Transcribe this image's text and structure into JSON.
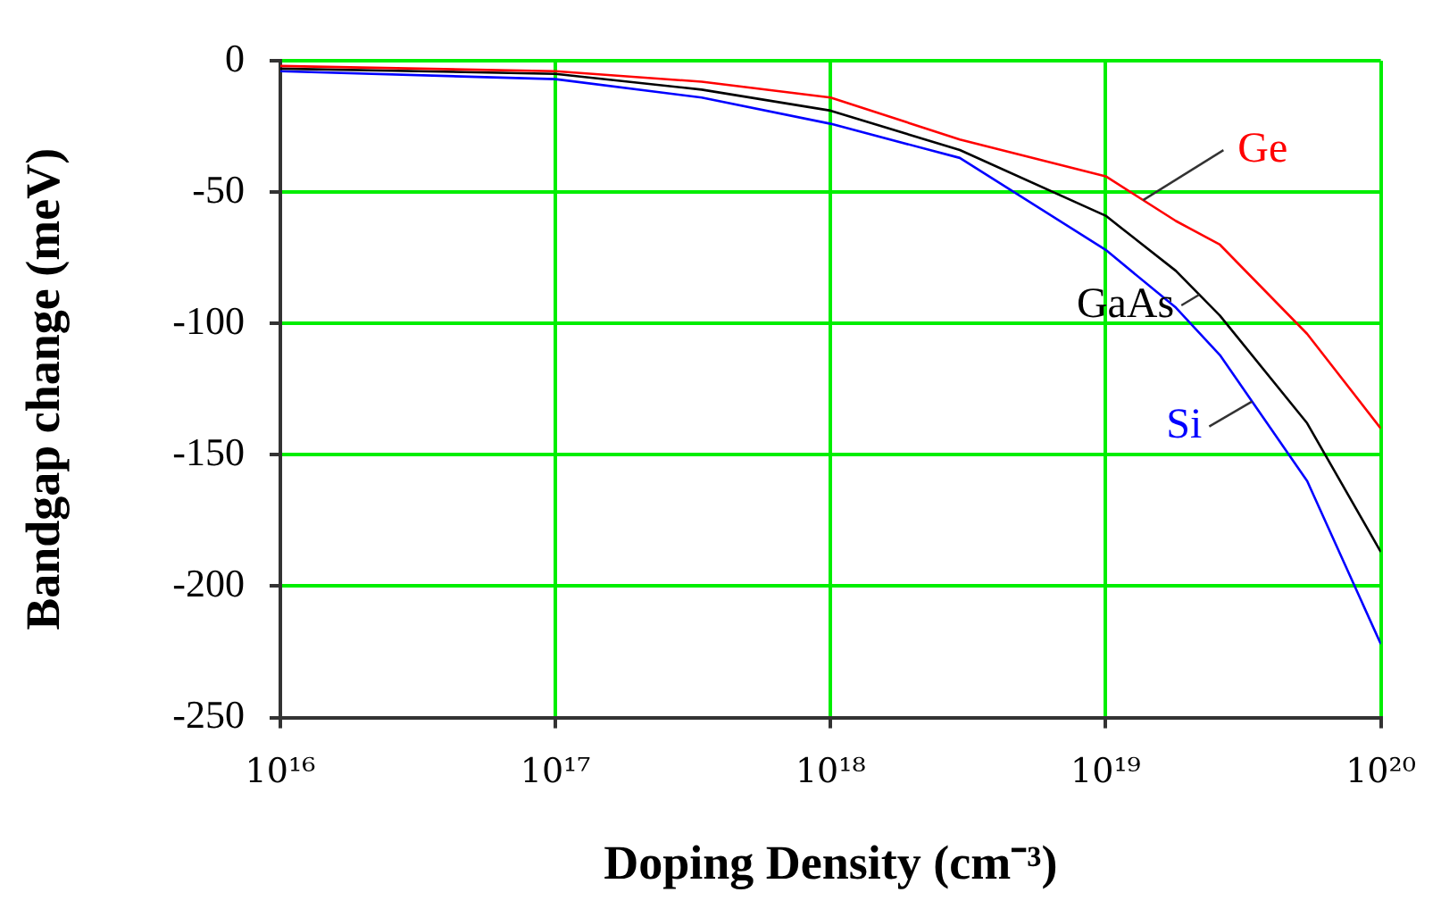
{
  "chart_data": {
    "type": "line",
    "xlabel": "Doping Density (cm⁻³)",
    "ylabel": "Bandgap change (meV)",
    "log": "x",
    "xlim": [
      1e+16,
      1e+20
    ],
    "xticks": [
      {
        "value": 1e+16,
        "label": "10¹⁶"
      },
      {
        "value": 1e+17,
        "label": "10¹⁷"
      },
      {
        "value": 1e+18,
        "label": "10¹⁸"
      },
      {
        "value": 1e+19,
        "label": "10¹⁹"
      },
      {
        "value": 1e+20,
        "label": "10²⁰"
      }
    ],
    "ylim": [
      -250,
      0
    ],
    "yticks": [
      -250,
      -200,
      -150,
      -100,
      -50,
      0
    ],
    "grid": true,
    "legend": false,
    "marker": "none",
    "line_style": "solid",
    "x": [
      1e+16,
      1e+17,
      3.4e+17,
      1e+18,
      2.95e+18,
      1e+19,
      1.8e+19,
      2.6e+19,
      5.4e+19,
      1e+20
    ],
    "series": [
      {
        "name": "Ge",
        "color": "#ff0000",
        "values": [
          -2,
          -4,
          -8,
          -14,
          -30,
          -44,
          -61,
          -70,
          -104,
          -140
        ]
      },
      {
        "name": "GaAs",
        "color": "#000000",
        "values": [
          -3,
          -5,
          -11,
          -19,
          -34,
          -59,
          -80,
          -97,
          -138,
          -187
        ]
      },
      {
        "name": "Si",
        "color": "#0000ff",
        "values": [
          -4,
          -7,
          -14,
          -24,
          -37,
          -72,
          -94,
          -112,
          -160,
          -222
        ]
      }
    ]
  }
}
